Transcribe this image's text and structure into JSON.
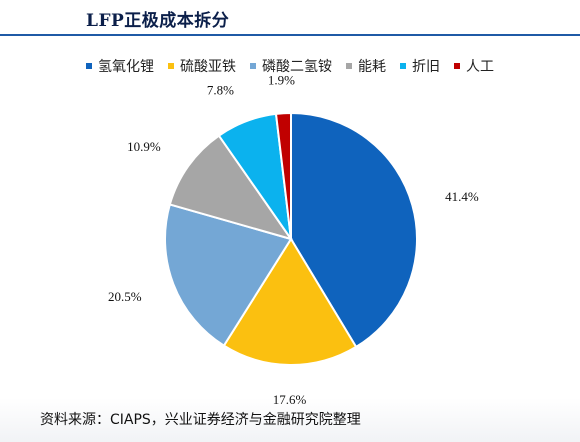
{
  "chart_data": {
    "type": "pie",
    "title": "LFP正极成本拆分",
    "series": [
      {
        "name": "氢氧化锂",
        "value": 41.4,
        "label": "41.4%",
        "color": "#0f63bd"
      },
      {
        "name": "硫酸亚铁",
        "value": 17.6,
        "label": "17.6%",
        "color": "#fbc010"
      },
      {
        "name": "磷酸二氢铵",
        "value": 20.5,
        "label": "20.5%",
        "color": "#74a7d5"
      },
      {
        "name": "能耗",
        "value": 10.9,
        "label": "10.9%",
        "color": "#a6a6a6"
      },
      {
        "name": "折旧",
        "value": 7.8,
        "label": "7.8%",
        "color": "#0bb2ee"
      },
      {
        "name": "人工",
        "value": 1.9,
        "label": "1.9%",
        "color": "#c00000"
      }
    ],
    "legend_position": "top",
    "start_angle_deg": 0,
    "direction": "clockwise"
  },
  "source_text": "资料来源：CIAPS，兴业证券经济与金融研究院整理",
  "colors": {
    "title_rule": "#1f5aa6",
    "title_text": "#0b1f4a"
  }
}
